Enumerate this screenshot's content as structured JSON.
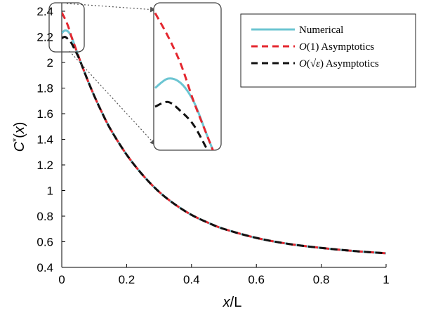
{
  "chart_data": {
    "type": "line",
    "xlabel": "x/L",
    "ylabel": "C*(x)",
    "xlim": [
      0,
      1
    ],
    "ylim": [
      0.4,
      2.4
    ],
    "xticks": [
      0,
      0.2,
      0.4,
      0.6,
      0.8,
      1
    ],
    "xtick_labels": [
      "0",
      "0.2",
      "0.4",
      "0.6",
      "0.8",
      "1"
    ],
    "yticks": [
      0.4,
      0.6,
      0.8,
      1,
      1.2,
      1.4,
      1.6,
      1.8,
      2,
      2.2,
      2.4
    ],
    "ytick_labels": [
      "0.4",
      "0.6",
      "0.8",
      "1",
      "1.2",
      "1.4",
      "1.6",
      "1.8",
      "2",
      "2.2",
      "2.4"
    ],
    "grid": false,
    "legend_position": "top-right",
    "series": [
      {
        "name": "Numerical",
        "color": "#6cc5d2",
        "dash": "solid",
        "x": [
          0,
          0.01,
          0.02,
          0.03,
          0.04,
          0.05,
          0.06,
          0.08,
          0.1,
          0.12,
          0.15,
          0.2,
          0.25,
          0.3,
          0.35,
          0.4,
          0.45,
          0.5,
          0.6,
          0.7,
          0.8,
          0.9,
          1.0
        ],
        "y": [
          2.23,
          2.25,
          2.24,
          2.2,
          2.13,
          2.06,
          1.99,
          1.86,
          1.74,
          1.63,
          1.48,
          1.28,
          1.12,
          0.99,
          0.89,
          0.81,
          0.75,
          0.7,
          0.63,
          0.583,
          0.552,
          0.528,
          0.51
        ]
      },
      {
        "name": "O(1) Asymptotics",
        "color": "#e4272f",
        "dash": "dashed",
        "x": [
          0,
          0.01,
          0.02,
          0.03,
          0.04,
          0.05,
          0.06,
          0.08,
          0.1,
          0.12,
          0.15,
          0.2,
          0.25,
          0.3,
          0.35,
          0.4,
          0.45,
          0.5,
          0.6,
          0.7,
          0.8,
          0.9,
          1.0
        ],
        "y": [
          2.39,
          2.34,
          2.28,
          2.2,
          2.13,
          2.06,
          1.99,
          1.86,
          1.74,
          1.63,
          1.48,
          1.28,
          1.12,
          0.99,
          0.89,
          0.81,
          0.75,
          0.7,
          0.63,
          0.583,
          0.552,
          0.528,
          0.51
        ]
      },
      {
        "name": "O(√ε) Asymptotics",
        "color": "#111111",
        "dash": "dashed",
        "x": [
          0,
          0.01,
          0.02,
          0.03,
          0.04,
          0.05,
          0.06,
          0.08,
          0.1,
          0.12,
          0.15,
          0.2,
          0.25,
          0.3,
          0.35,
          0.4,
          0.45,
          0.5,
          0.6,
          0.7,
          0.8,
          0.9,
          1.0
        ],
        "y": [
          2.19,
          2.2,
          2.18,
          2.15,
          2.1,
          2.05,
          1.99,
          1.86,
          1.74,
          1.63,
          1.48,
          1.28,
          1.12,
          0.99,
          0.89,
          0.81,
          0.75,
          0.7,
          0.63,
          0.583,
          0.552,
          0.528,
          0.51
        ]
      }
    ],
    "inset": {
      "xlim": [
        0,
        0.05
      ],
      "ylim": [
        2.1,
        2.4
      ]
    }
  }
}
